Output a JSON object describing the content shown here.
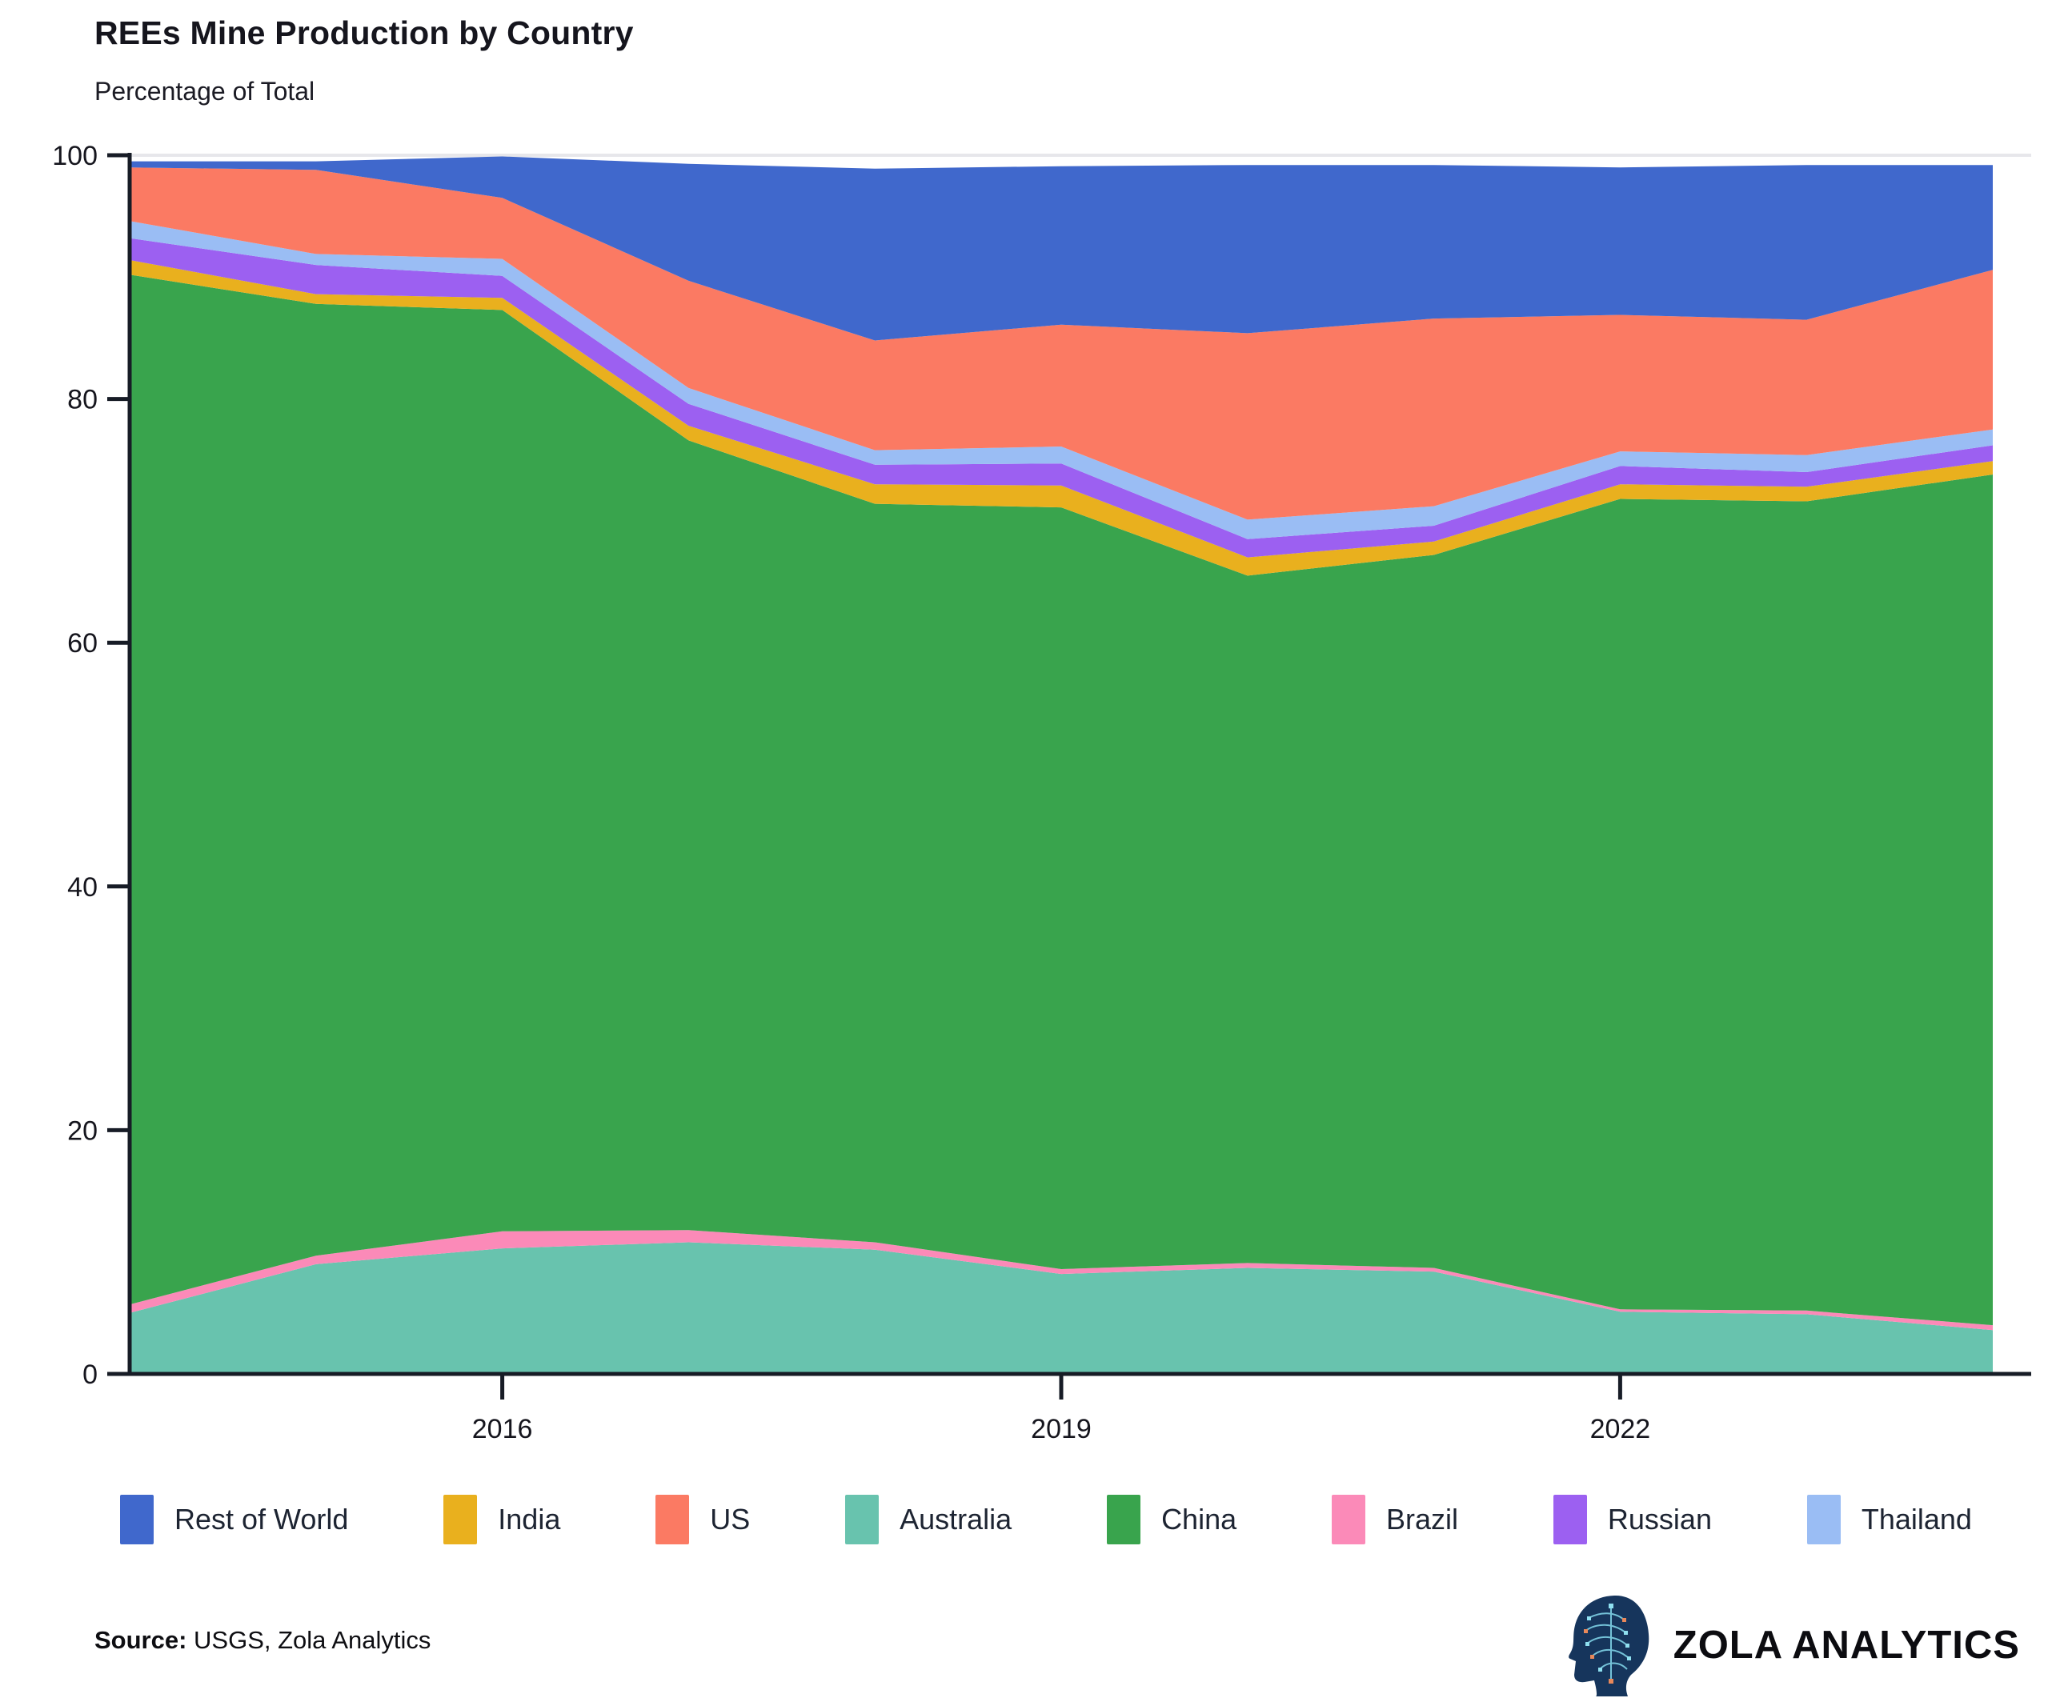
{
  "source": {
    "label": "Source:",
    "text": " USGS, Zola Analytics"
  },
  "brand": {
    "name": "ZOLA ANALYTICS"
  },
  "chart_data": {
    "type": "area",
    "stacked": true,
    "title": "REEs Mine Production by Country",
    "subtitle": "Percentage of Total",
    "xlabel": "",
    "ylabel": "Percentage of Total",
    "ylim": [
      0,
      100
    ],
    "grid": "top-line-only",
    "legend_position": "bottom",
    "x": [
      2014,
      2015,
      2016,
      2017,
      2018,
      2019,
      2020,
      2021,
      2022,
      2023,
      2024
    ],
    "x_tick_labels": [
      "2016",
      "2019",
      "2022"
    ],
    "x_tick_values": [
      2016,
      2019,
      2022
    ],
    "y_tick_labels": [
      "0",
      "20",
      "40",
      "60",
      "80",
      "100"
    ],
    "y_tick_values": [
      0,
      20,
      40,
      60,
      80,
      100
    ],
    "stack_order": [
      "Australia",
      "Brazil",
      "China",
      "India",
      "Russian",
      "Thailand",
      "US",
      "Rest of World"
    ],
    "series": [
      {
        "name": "Rest of World",
        "color": "#4068cc",
        "values": [
          0.5,
          0.7,
          3.4,
          9.6,
          14.1,
          13.0,
          13.8,
          12.6,
          12.1,
          12.7,
          8.6
        ]
      },
      {
        "name": "India",
        "color": "#e9b01e",
        "values": [
          1.2,
          0.8,
          1.0,
          1.2,
          1.6,
          1.8,
          1.5,
          1.1,
          1.2,
          1.2,
          1.1
        ]
      },
      {
        "name": "US",
        "color": "#fb7a63",
        "values": [
          4.4,
          6.9,
          5.0,
          8.8,
          9.0,
          10.0,
          15.3,
          15.4,
          11.2,
          11.1,
          13.1
        ]
      },
      {
        "name": "Australia",
        "color": "#68c3ae",
        "values": [
          5.0,
          9.0,
          10.3,
          10.8,
          10.2,
          8.2,
          8.7,
          8.4,
          5.1,
          4.9,
          3.6
        ]
      },
      {
        "name": "China",
        "color": "#39a44d",
        "values": [
          84.5,
          78.1,
          75.6,
          64.8,
          60.6,
          62.5,
          56.4,
          58.5,
          66.5,
          66.4,
          69.8
        ]
      },
      {
        "name": "Brazil",
        "color": "#fb8ab8",
        "values": [
          0.7,
          0.7,
          1.4,
          1.0,
          0.6,
          0.4,
          0.4,
          0.3,
          0.2,
          0.3,
          0.4
        ]
      },
      {
        "name": "Russian",
        "color": "#9c60f1",
        "values": [
          1.8,
          2.4,
          1.8,
          1.8,
          1.6,
          1.8,
          1.5,
          1.3,
          1.5,
          1.2,
          1.3
        ]
      },
      {
        "name": "Thailand",
        "color": "#9abdf4",
        "values": [
          1.4,
          0.9,
          1.4,
          1.3,
          1.2,
          1.4,
          1.6,
          1.6,
          1.2,
          1.4,
          1.3
        ]
      }
    ]
  }
}
